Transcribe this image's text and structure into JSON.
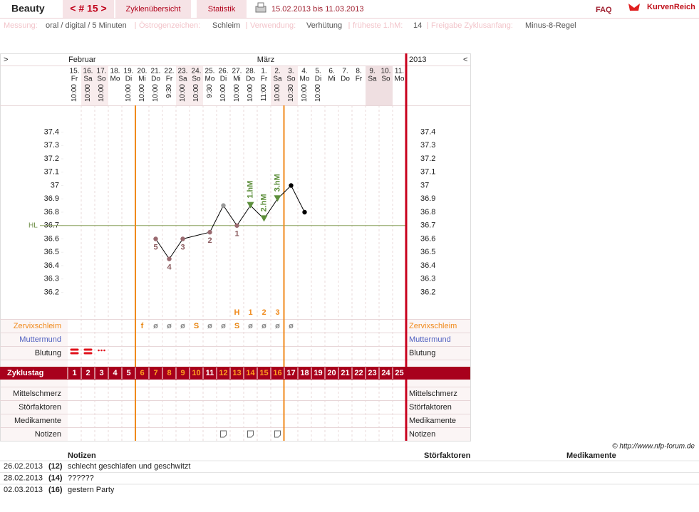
{
  "header": {
    "title": "Beauty",
    "cycle": "< # 15 >",
    "tabs": [
      "Zyklenübersicht",
      "Statistik"
    ],
    "date_range": "15.02.2013 bis 11.03.2013",
    "faq": "FAQ",
    "logo": "KurvenReich"
  },
  "settings": [
    {
      "label": "Messung:",
      "value": "oral / digital / 5 Minuten"
    },
    {
      "label": "Östrogenzeichen:",
      "value": "Schleim"
    },
    {
      "label": "Verwendung:",
      "value": "Verhütung"
    },
    {
      "label": "früheste 1.hM:",
      "value": "14"
    },
    {
      "label": "Freigabe Zyklusanfang:",
      "value": "Minus-8-Regel"
    }
  ],
  "chart": {
    "nav_next": ">",
    "nav_prev": "<",
    "months": [
      "Februar",
      "März"
    ],
    "year": "2013",
    "days": [
      {
        "date": "15.",
        "weekday": "Fr",
        "time": "10:00"
      },
      {
        "date": "16.",
        "weekday": "Sa",
        "time": "10:00"
      },
      {
        "date": "17.",
        "weekday": "So",
        "time": "10:00"
      },
      {
        "date": "18.",
        "weekday": "Mo"
      },
      {
        "date": "19.",
        "weekday": "Di",
        "time": "10:00"
      },
      {
        "date": "20.",
        "weekday": "Mi",
        "time": "10:00"
      },
      {
        "date": "21.",
        "weekday": "Do",
        "time": "10:00"
      },
      {
        "date": "22.",
        "weekday": "Fr",
        "time": "9:30"
      },
      {
        "date": "23.",
        "weekday": "Sa",
        "time": "10:00"
      },
      {
        "date": "24.",
        "weekday": "So",
        "time": "10:00"
      },
      {
        "date": "25.",
        "weekday": "Mo",
        "time": "9:30"
      },
      {
        "date": "26.",
        "weekday": "Di",
        "time": "10:00"
      },
      {
        "date": "27.",
        "weekday": "Mi",
        "time": "10:00"
      },
      {
        "date": "28.",
        "weekday": "Do",
        "time": "10:00"
      },
      {
        "date": "1.",
        "weekday": "Fr",
        "time": "11:00"
      },
      {
        "date": "2.",
        "weekday": "Sa",
        "time": "10:00"
      },
      {
        "date": "3.",
        "weekday": "So",
        "time": "10:30"
      },
      {
        "date": "4.",
        "weekday": "Mo",
        "time": "10:00"
      },
      {
        "date": "5.",
        "weekday": "Di",
        "time": "10:00"
      },
      {
        "date": "6.",
        "weekday": "Mi"
      },
      {
        "date": "7.",
        "weekday": "Do"
      },
      {
        "date": "8.",
        "weekday": "Fr"
      },
      {
        "date": "9.",
        "weekday": "Sa"
      },
      {
        "date": "10.",
        "weekday": "So"
      },
      {
        "date": "11.",
        "weekday": "Mo"
      }
    ],
    "temperature": {
      "x": [
        7,
        8,
        9,
        11,
        12,
        13,
        14,
        15,
        16,
        17,
        18
      ],
      "values": [
        36.6,
        36.45,
        36.6,
        36.65,
        36.85,
        36.7,
        36.85,
        36.75,
        36.9,
        37.0,
        36.8
      ],
      "point_colors": [
        "#9a6a70",
        "#9a6a70",
        "#9a6a70",
        "#9a6a70",
        "#999999",
        "#9a6a70",
        "#5e8f3c",
        "#5e8f3c",
        "#5e8f3c",
        "#000000",
        "#000000"
      ],
      "point_labels": [
        5,
        4,
        3,
        2,
        null,
        1,
        null,
        null,
        null,
        null,
        null
      ],
      "hm_labels": [
        null,
        null,
        null,
        null,
        null,
        null,
        "1.hM",
        "2.hM",
        "3.hM",
        null,
        null
      ],
      "ylim": [
        36.0,
        37.6
      ],
      "yticks": [
        37.4,
        37.3,
        37.2,
        37.1,
        37,
        36.9,
        36.8,
        36.7,
        36.6,
        36.5,
        36.4,
        36.3,
        36.2
      ],
      "hl": {
        "label": "HL",
        "value": 36.7
      }
    },
    "hl_row": [
      null,
      null,
      null,
      null,
      null,
      null,
      null,
      null,
      null,
      null,
      null,
      null,
      "H",
      "1",
      "2",
      "3",
      null,
      null,
      null,
      null,
      null,
      null,
      null,
      null,
      null
    ],
    "cervix": [
      null,
      null,
      null,
      null,
      null,
      "f",
      "ø",
      "ø",
      "ø",
      "S",
      "ø",
      "ø",
      "S",
      "ø",
      "ø",
      "ø",
      "ø",
      null,
      null,
      null,
      null,
      null,
      null,
      null,
      null
    ],
    "rows_top": [
      "Zervixschleim",
      "Muttermund",
      "Blutung"
    ],
    "cycle_day_label": "Zyklustag",
    "cycle_days": [
      1,
      2,
      3,
      4,
      5,
      6,
      7,
      8,
      9,
      10,
      11,
      12,
      13,
      14,
      15,
      16,
      17,
      18,
      19,
      20,
      21,
      22,
      23,
      24,
      25
    ],
    "rows_bottom": [
      "Mittelschmerz",
      "Störfaktoren",
      "Medikamente",
      "Notizen"
    ]
  },
  "copyright": "© http://www.nfp-forum.de",
  "notes_table": {
    "headers": [
      "Notizen",
      "Störfaktoren",
      "Medikamente"
    ],
    "rows": [
      [
        "26.02.2013",
        "(12)",
        "schlecht geschlafen und geschwitzt"
      ],
      [
        "28.02.2013",
        "(14)",
        "??????"
      ],
      [
        "02.03.2013",
        "(16)",
        "gestern Party"
      ]
    ]
  }
}
